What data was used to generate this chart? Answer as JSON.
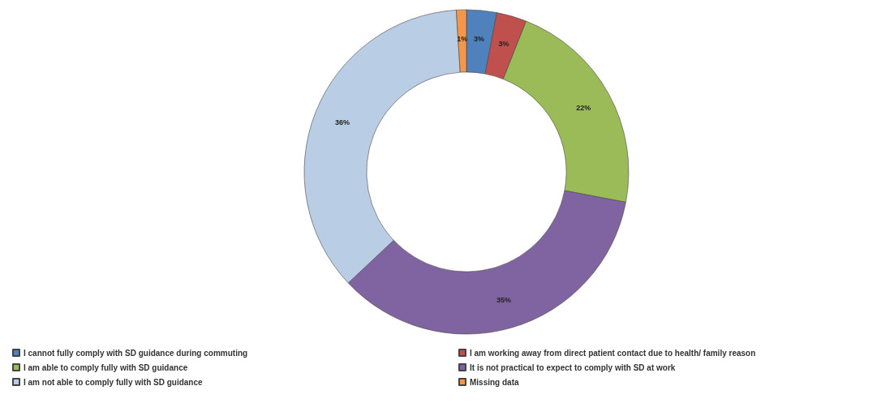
{
  "chart_data": {
    "type": "donut",
    "categories": [
      "I cannot fully comply with SD guidance during commuting",
      "I am working away from direct patient contact due to health/ family reason",
      "I am able to comply fully with SD guidance",
      "It is not practical to expect to comply with SD at work",
      "I am not able to comply fully with SD guidance",
      "Missing data"
    ],
    "values": [
      3,
      3,
      22,
      35,
      36,
      1
    ],
    "value_labels": [
      "3%",
      "3%",
      "22%",
      "35%",
      "36%",
      "1%"
    ],
    "colors": [
      "#4f81bd",
      "#c0504d",
      "#9bbb59",
      "#8064a2",
      "#b9cde5",
      "#f79646"
    ],
    "legend": "bottom"
  }
}
